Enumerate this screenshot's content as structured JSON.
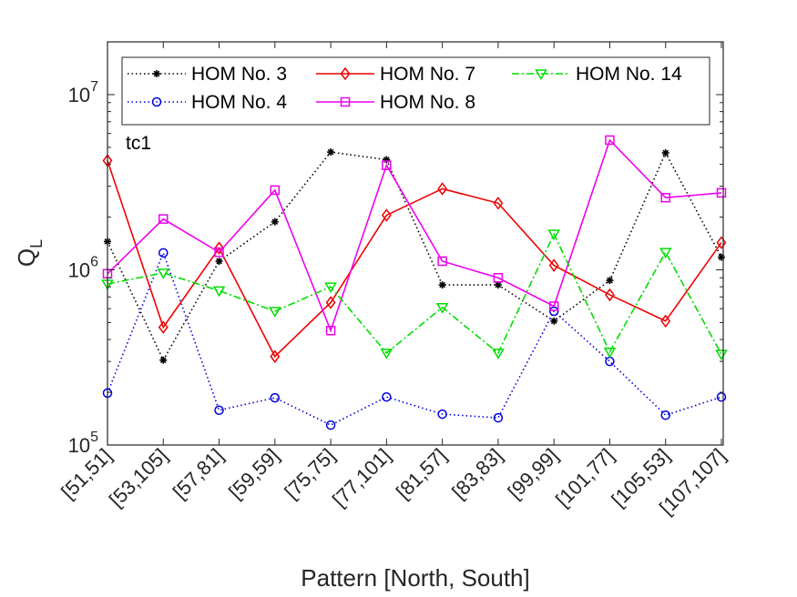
{
  "chart_data": {
    "type": "line",
    "yscale": "log",
    "ylim": [
      100000,
      20000000
    ],
    "ylabel_main": "Q",
    "ylabel_sub": "L",
    "xlabel": "Pattern [North, South]",
    "annotation": "tc1",
    "categories": [
      "[51,51]",
      "[53,105]",
      "[57,81]",
      "[59,59]",
      "[75,75]",
      "[77,101]",
      "[81,57]",
      "[83,83]",
      "[99,99]",
      "[101,77]",
      "[105,53]",
      "[107,107]"
    ],
    "yticks": [
      {
        "value": 100000,
        "base": "10",
        "exp": "5"
      },
      {
        "value": 1000000,
        "base": "10",
        "exp": "6"
      },
      {
        "value": 10000000,
        "base": "10",
        "exp": "7"
      }
    ],
    "series": [
      {
        "name": "HOM No. 3",
        "color": "#000000",
        "dash": "dotted",
        "marker": "asterisk",
        "values": [
          1450000,
          305000,
          1120000,
          1880000,
          4700000,
          4250000,
          820000,
          820000,
          510000,
          870000,
          4650000,
          1180000
        ]
      },
      {
        "name": "HOM No. 4",
        "color": "#0000dd",
        "dash": "dotted",
        "marker": "circle",
        "values": [
          198000,
          1250000,
          158000,
          186000,
          130000,
          188000,
          150000,
          143000,
          580000,
          300000,
          148000,
          188000
        ]
      },
      {
        "name": "HOM No. 7",
        "color": "#ee0000",
        "dash": "solid",
        "marker": "diamond",
        "values": [
          4200000,
          470000,
          1330000,
          320000,
          650000,
          2050000,
          2900000,
          2400000,
          1060000,
          720000,
          510000,
          1430000
        ]
      },
      {
        "name": "HOM No. 8",
        "color": "#ee00ee",
        "dash": "solid",
        "marker": "square",
        "values": [
          950000,
          1950000,
          1260000,
          2850000,
          450000,
          3950000,
          1120000,
          900000,
          620000,
          5500000,
          2580000,
          2750000
        ]
      },
      {
        "name": "HOM No. 14",
        "color": "#00dd00",
        "dash": "dashdot",
        "marker": "triangle-down",
        "values": [
          830000,
          960000,
          760000,
          580000,
          800000,
          335000,
          610000,
          335000,
          1600000,
          340000,
          1260000,
          330000
        ]
      }
    ],
    "legend": {
      "position": "top",
      "columns": 3
    }
  }
}
